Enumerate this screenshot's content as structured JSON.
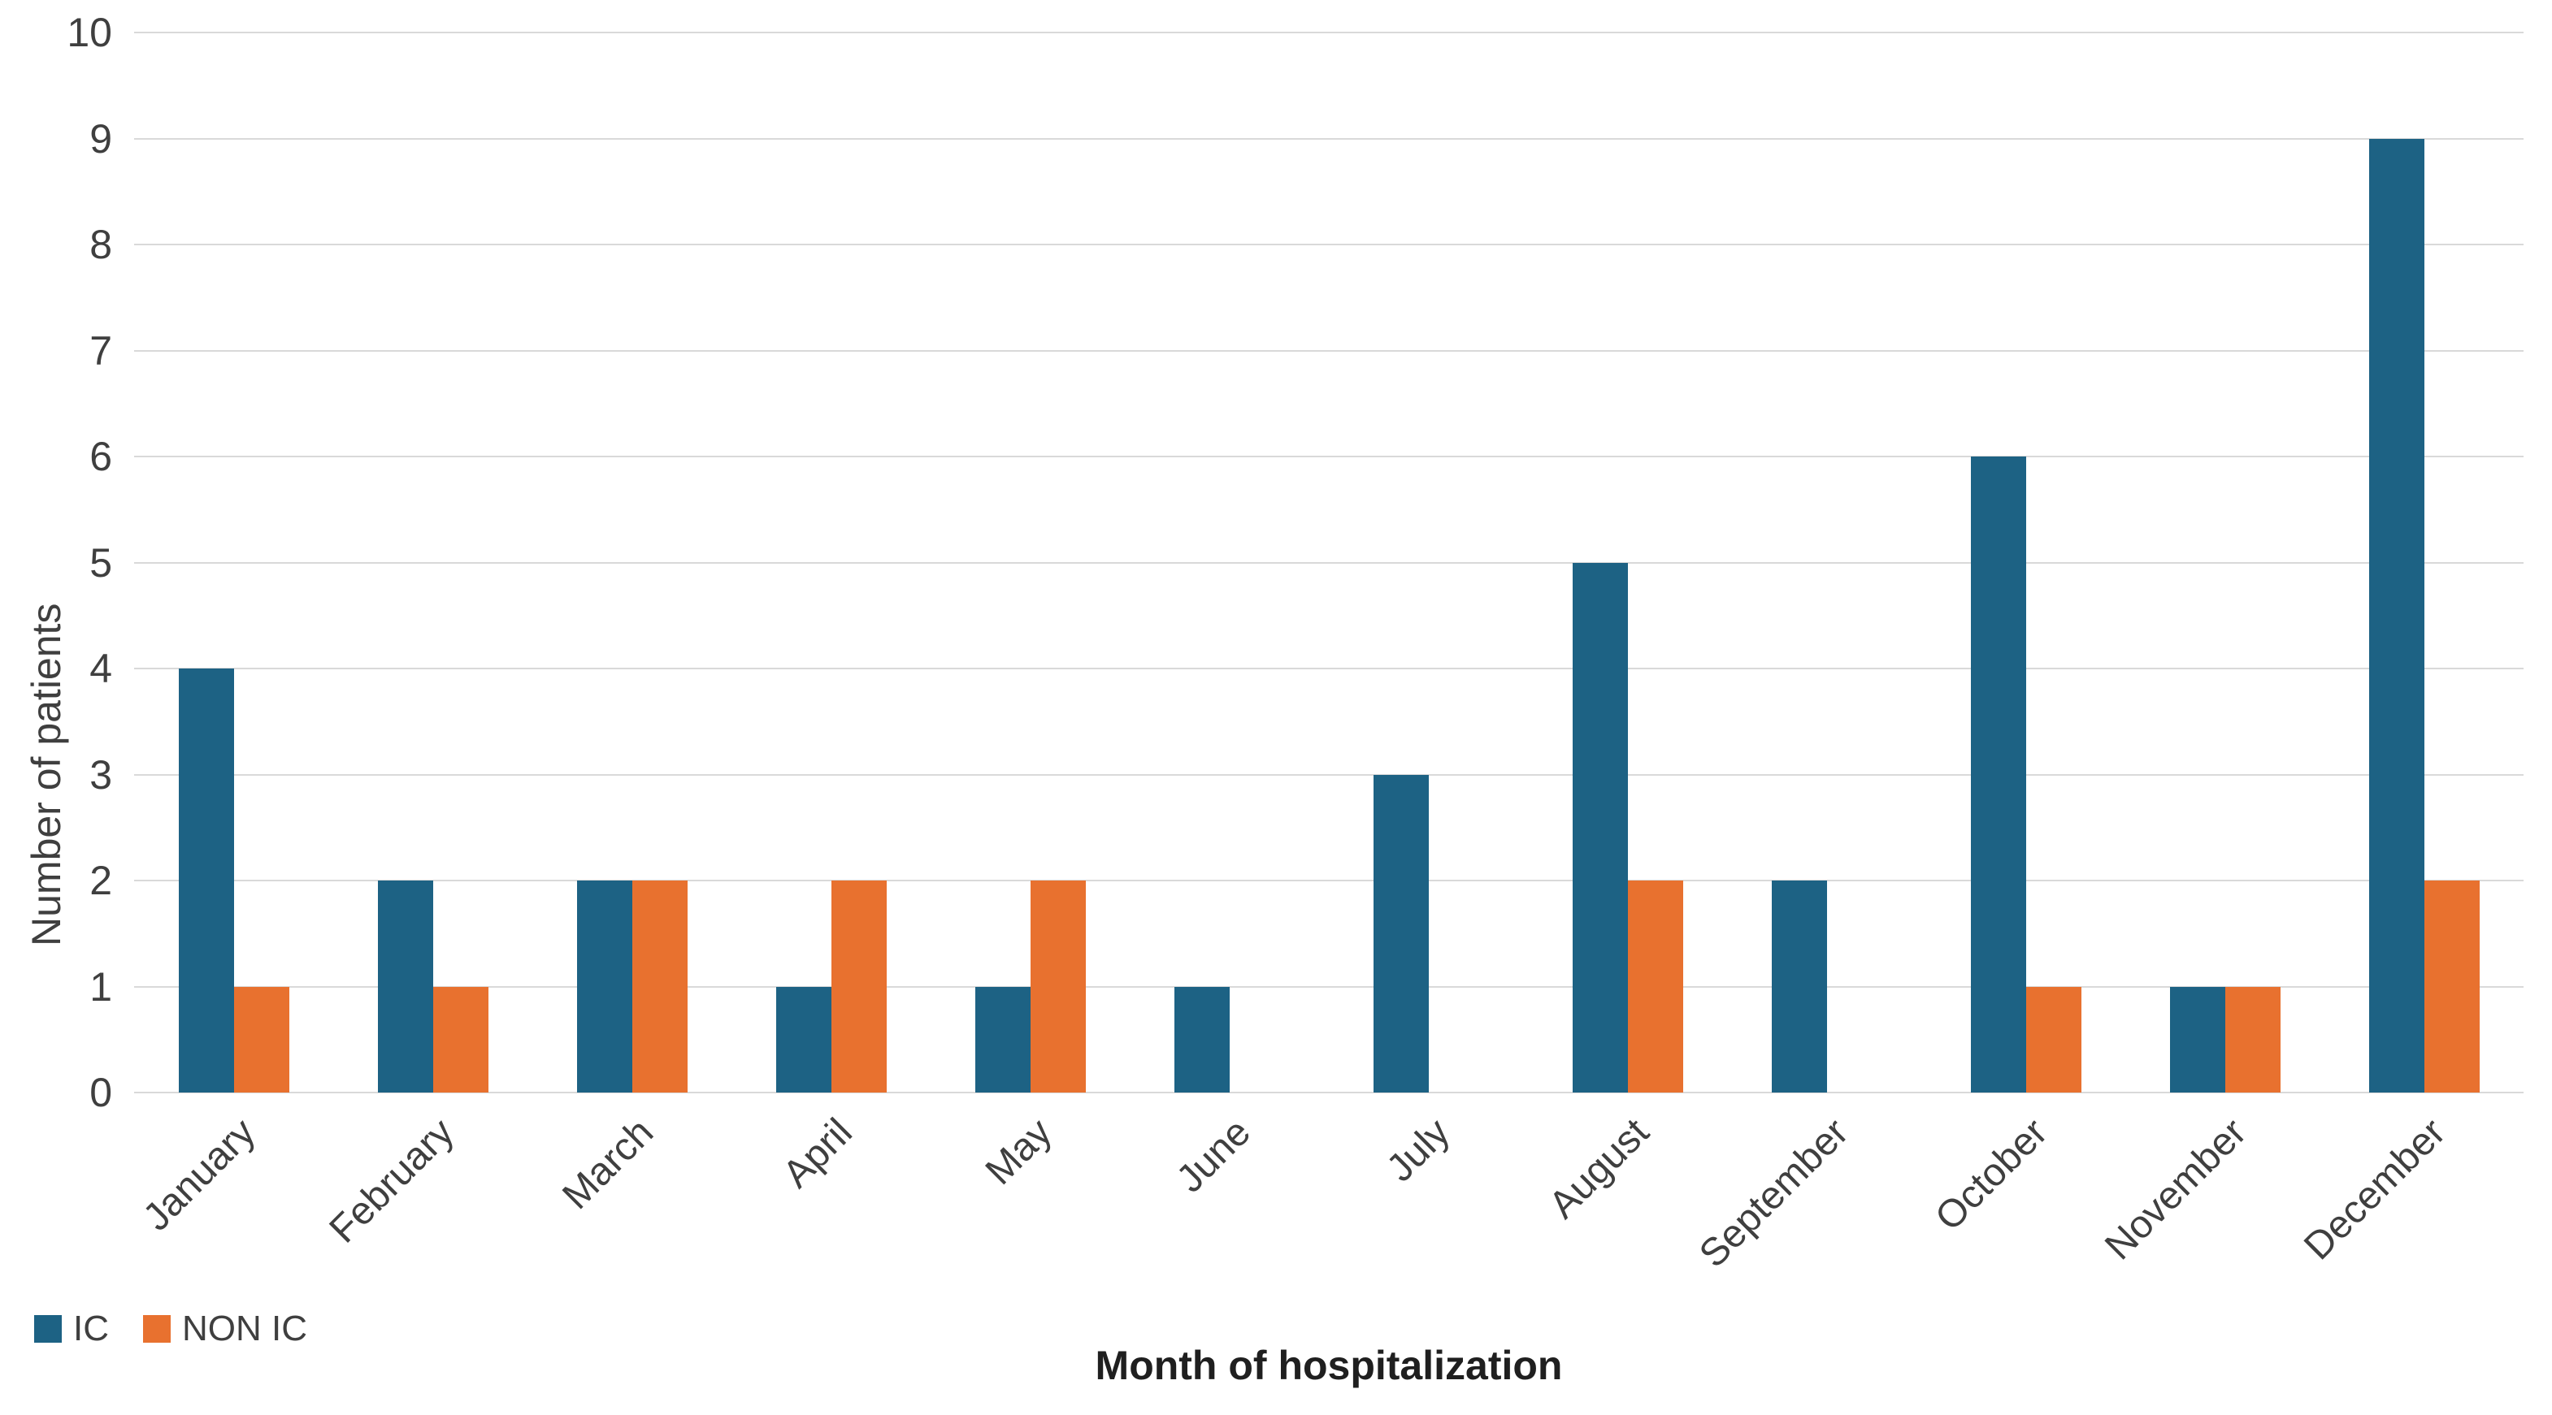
{
  "chart_data": {
    "type": "bar",
    "title": "",
    "categories": [
      "January",
      "February",
      "March",
      "April",
      "May",
      "June",
      "July",
      "August",
      "September",
      "October",
      "November",
      "December"
    ],
    "series": [
      {
        "name": "IC",
        "color": "#1d6284",
        "values": [
          4,
          2,
          2,
          1,
          1,
          1,
          3,
          5,
          2,
          6,
          1,
          9
        ]
      },
      {
        "name": "NON IC",
        "color": "#e8712f",
        "values": [
          1,
          1,
          2,
          2,
          2,
          0,
          0,
          2,
          0,
          1,
          1,
          2
        ]
      }
    ],
    "xlabel": "Month of hospitalization",
    "ylabel": "Number of patients",
    "ylim": [
      0,
      10
    ],
    "ytick_step": 1,
    "yticks": [
      0,
      1,
      2,
      3,
      4,
      5,
      6,
      7,
      8,
      9,
      10
    ],
    "grid": true,
    "gridline_color": "#d9d9d9",
    "tick_label_color": "#3f3f3f",
    "axis_title_color": "#1f1f1f",
    "legend_position": "bottom-left",
    "legend": [
      "IC",
      "NON IC"
    ]
  }
}
